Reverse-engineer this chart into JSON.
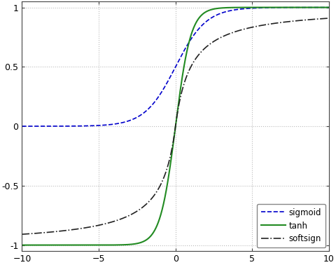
{
  "xlim": [
    -10,
    10
  ],
  "ylim": [
    -1.05,
    1.05
  ],
  "xticks": [
    -10,
    -5,
    0,
    5,
    10
  ],
  "yticks": [
    -1,
    -0.5,
    0,
    0.5,
    1
  ],
  "ytick_labels": [
    "-1",
    "-0.5",
    "0",
    "0.5",
    "1"
  ],
  "grid_color": "#bbbbbb",
  "bg_color": "#ffffff",
  "sigmoid_color": "#0000cc",
  "tanh_color": "#228B22",
  "softsign_color": "#222222",
  "legend_entries": [
    "sigmoid",
    "tanh",
    "softsign"
  ],
  "fig_width": 4.8,
  "fig_height": 3.78,
  "dpi": 100,
  "border_color": "#444444",
  "tick_label_size": 9,
  "legend_fontsize": 8.5
}
